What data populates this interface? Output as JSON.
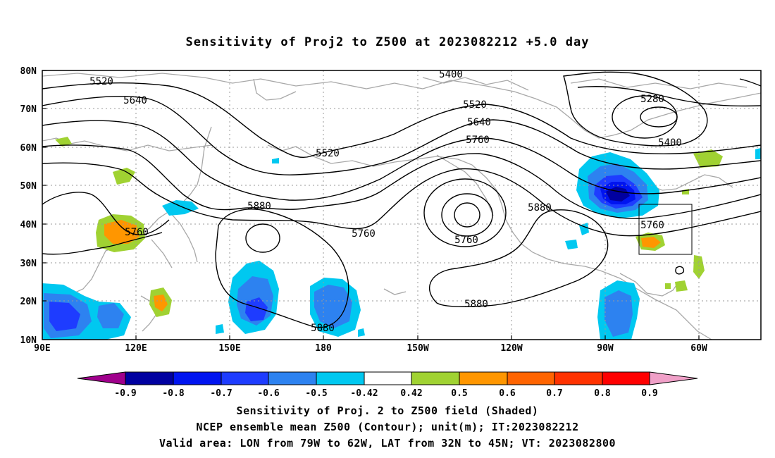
{
  "title": "Sensitivity of Proj2 to Z500 at 2023082212 +5.0 day",
  "axes": {
    "lat_labels": [
      "80N",
      "70N",
      "60N",
      "50N",
      "40N",
      "30N",
      "20N",
      "10N"
    ],
    "lon_labels": [
      "90E",
      "120E",
      "150E",
      "180",
      "150W",
      "120W",
      "90W",
      "60W"
    ]
  },
  "contour_labels": [
    "5520",
    "5640",
    "5520",
    "5880",
    "5760",
    "5400",
    "5520",
    "5640",
    "5760",
    "5760",
    "5760",
    "5880",
    "5880",
    "5880",
    "5280",
    "5400",
    "5760"
  ],
  "colorbar": {
    "labels": [
      "-0.9",
      "-0.8",
      "-0.7",
      "-0.6",
      "-0.5",
      "-0.42",
      "0.42",
      "0.5",
      "0.6",
      "0.7",
      "0.8",
      "0.9"
    ],
    "colors": [
      "#a0008c",
      "#0000a0",
      "#0014f0",
      "#1e3cff",
      "#2d82f0",
      "#00c8f0",
      "#ffffff",
      "#a0d232",
      "#ff9600",
      "#ff6400",
      "#ff3200",
      "#ff0000",
      "#f0a0c8"
    ]
  },
  "captions": [
    "Sensitivity of Proj. 2 to Z500 field (Shaded)",
    "NCEP ensemble mean Z500 (Contour); unit(m); IT:2023082212",
    "Valid area: LON from 79W to 62W, LAT from 32N to 45N; VT: 2023082800"
  ]
}
